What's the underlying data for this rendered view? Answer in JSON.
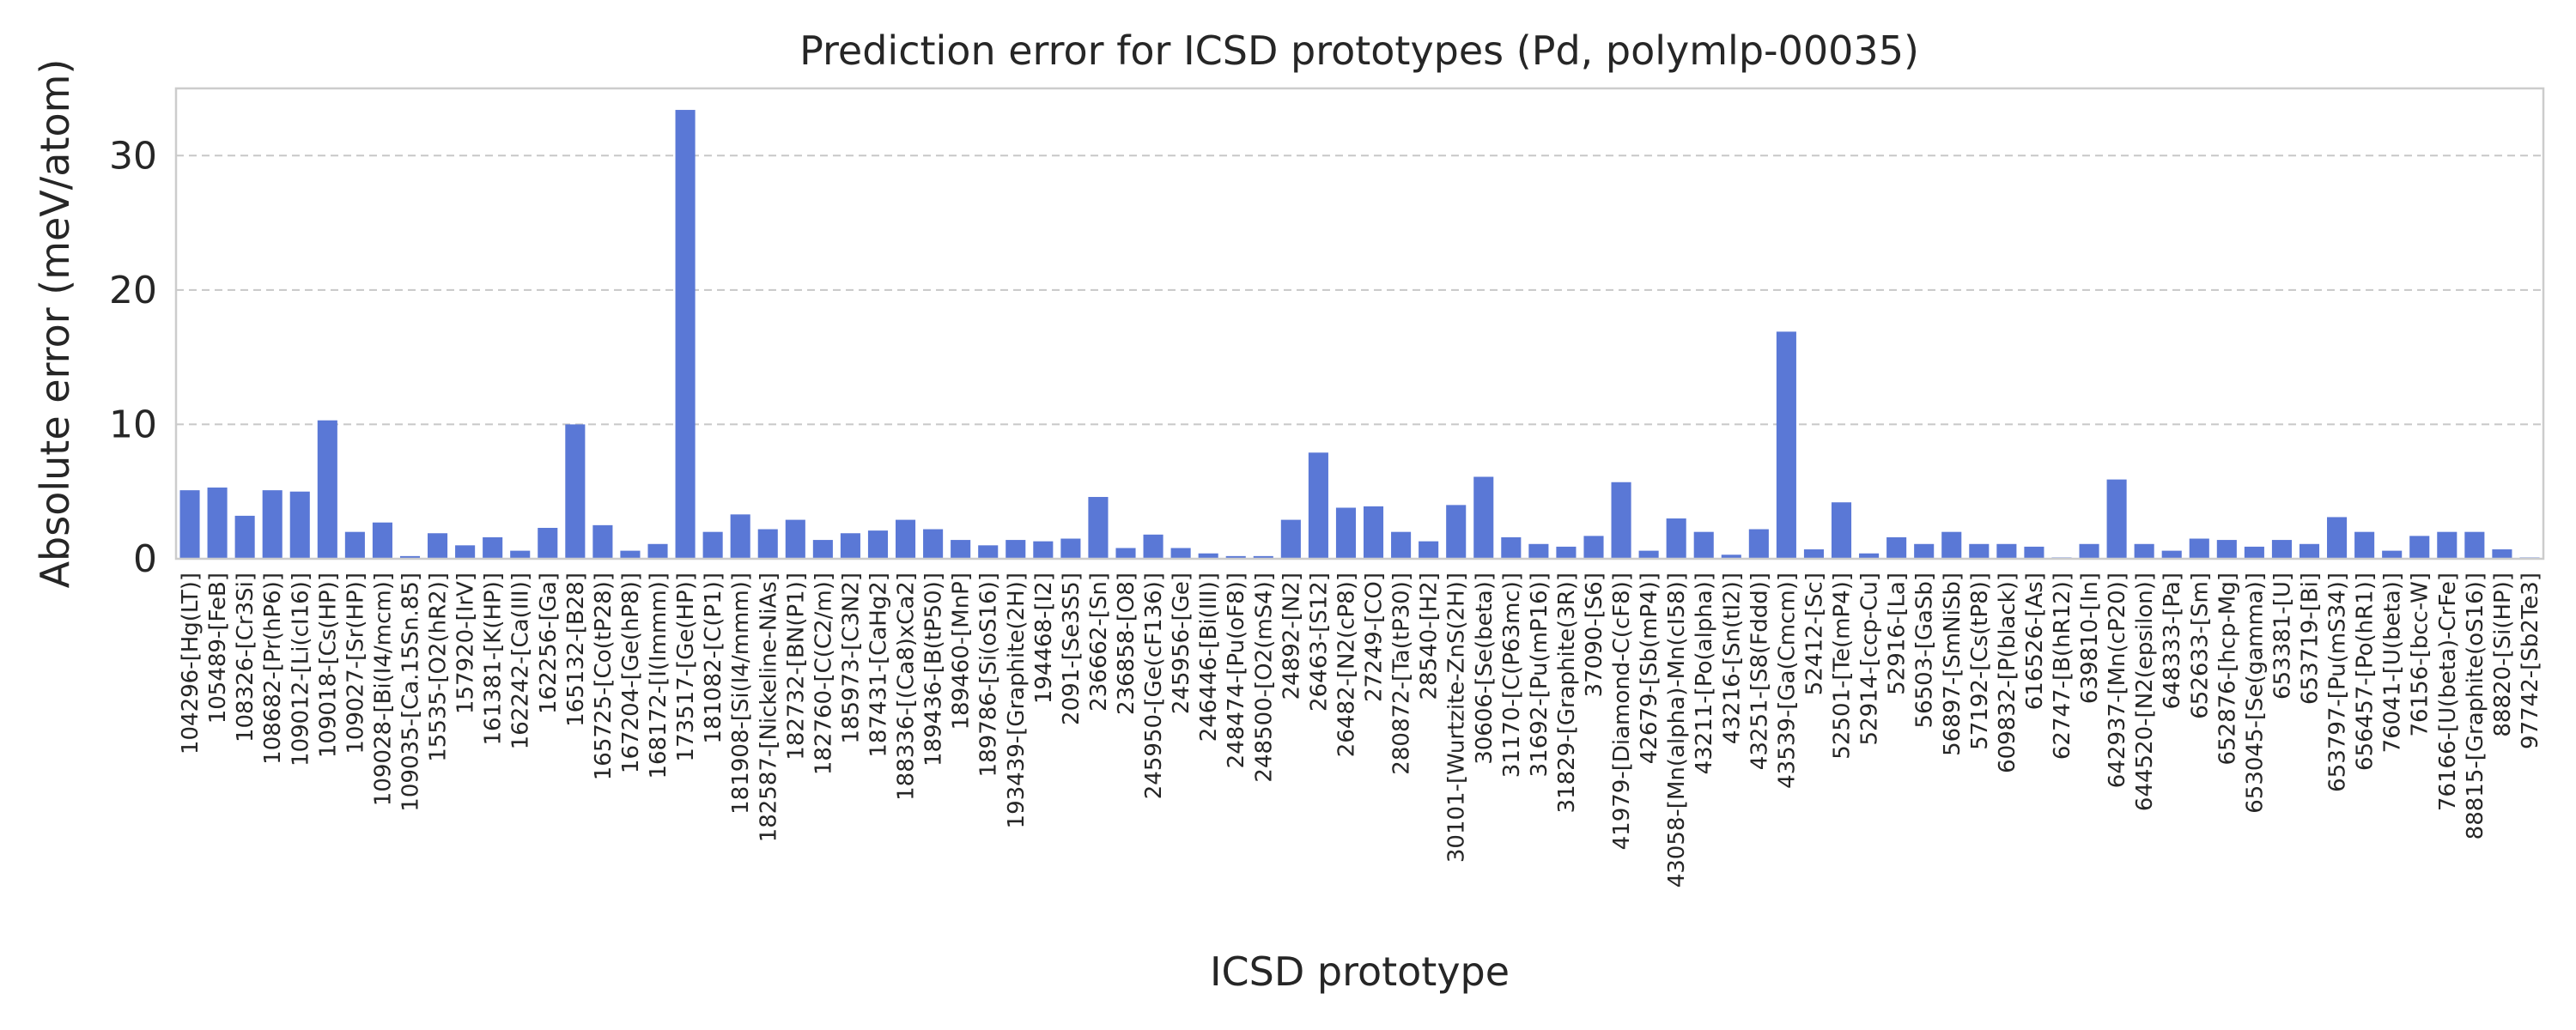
{
  "chart_data": {
    "type": "bar",
    "title": "Prediction error for ICSD prototypes (Pd, polymlp-00035)",
    "xlabel": "ICSD prototype",
    "ylabel": "Absolute error (meV/atom)",
    "ylim": [
      0,
      35
    ],
    "yticks": [
      0,
      10,
      20,
      30
    ],
    "grid": "horizontal dashed",
    "bar_color": "#5a78d6",
    "categories": [
      "104296-[Hg(LT)]",
      "105489-[FeB]",
      "108326-[Cr3Si]",
      "108682-[Pr(hP6)]",
      "109012-[Li(cI16)]",
      "109018-[Cs(HP)]",
      "109027-[Sr(HP)]",
      "109028-[Bi(I4/mcm)]",
      "109035-[Ca.15Sn.85]",
      "15535-[O2(hR2)]",
      "157920-[IrV]",
      "161381-[K(HP)]",
      "162242-[Ca(III)]",
      "162256-[Ga]",
      "165132-[B28]",
      "165725-[Co(tP28)]",
      "167204-[Ge(hP8)]",
      "168172-[I(Immm)]",
      "173517-[Ge(HP)]",
      "181082-[C(P1)]",
      "181908-[Si(I4/mmm)]",
      "182587-[Nickeline-NiAs]",
      "182732-[BN(P1)]",
      "182760-[C(C2/m)]",
      "185973-[C3N2]",
      "187431-[CaHg2]",
      "188336-[(Ca8)xCa2]",
      "189436-[B(tP50)]",
      "189460-[MnP]",
      "189786-[Si(oS16)]",
      "193439-[Graphite(2H)]",
      "194468-[I2]",
      "2091-[Se3S5]",
      "236662-[Sn]",
      "236858-[O8]",
      "245950-[Ge(cF136)]",
      "245956-[Ge]",
      "246446-[Bi(III)]",
      "248474-[Pu(oF8)]",
      "248500-[O2(mS4)]",
      "24892-[N2]",
      "26463-[S12]",
      "26482-[N2(cP8)]",
      "27249-[CO]",
      "280872-[Ta(tP30)]",
      "28540-[H2]",
      "30101-[Wurtzite-ZnS(2H)]",
      "30606-[Se(beta)]",
      "31170-[C(P63mc)]",
      "31692-[Pu(mP16)]",
      "31829-[Graphite(3R)]",
      "37090-[S6]",
      "41979-[Diamond-C(cF8)]",
      "42679-[Sb(mP4)]",
      "43058-[Mn(alpha)-Mn(cI58)]",
      "43211-[Po(alpha)]",
      "43216-[Sn(tI2)]",
      "43251-[S8(Fddd)]",
      "43539-[Ga(Cmcm)]",
      "52412-[Sc]",
      "52501-[Te(mP4)]",
      "52914-[ccp-Cu]",
      "52916-[La]",
      "56503-[GaSb]",
      "56897-[SmNiSb]",
      "57192-[Cs(tP8)]",
      "609832-[P(black)]",
      "616526-[As]",
      "62747-[B(hR12)]",
      "639810-[In]",
      "642937-[Mn(cP20)]",
      "644520-[N2(epsilon)]",
      "648333-[Pa]",
      "652633-[Sm]",
      "652876-[hcp-Mg]",
      "653045-[Se(gamma)]",
      "653381-[U]",
      "653719-[Bi]",
      "653797-[Pu(mS34)]",
      "656457-[Po(hR1)]",
      "76041-[U(beta)]",
      "76156-[bcc-W]",
      "76166-[U(beta)-CrFe]",
      "88815-[Graphite(oS16)]",
      "88820-[Si(HP)]",
      "97742-[Sb2Te3]"
    ],
    "values": [
      5.1,
      5.3,
      3.2,
      5.1,
      5.0,
      10.3,
      2.0,
      2.7,
      0.2,
      1.9,
      1.0,
      1.6,
      0.6,
      2.3,
      10.0,
      2.5,
      0.6,
      1.1,
      33.4,
      2.0,
      3.3,
      2.2,
      2.9,
      1.4,
      1.9,
      2.1,
      2.9,
      2.2,
      1.4,
      1.0,
      1.4,
      1.3,
      1.5,
      4.6,
      0.8,
      1.8,
      0.8,
      0.4,
      0.2,
      0.2,
      2.9,
      7.9,
      3.8,
      3.9,
      2.0,
      1.3,
      4.0,
      6.1,
      1.6,
      1.1,
      0.9,
      1.7,
      5.7,
      0.6,
      3.0,
      2.0,
      0.3,
      2.2,
      16.9,
      0.7,
      4.2,
      0.4,
      1.6,
      1.1,
      2.0,
      1.1,
      1.1,
      0.9,
      0.1,
      1.1,
      5.9,
      1.1,
      0.6,
      1.5,
      1.4,
      0.9,
      1.4,
      1.1,
      3.1,
      2.0,
      0.6,
      1.7,
      2.0,
      2.0,
      0.7,
      0.1
    ]
  }
}
